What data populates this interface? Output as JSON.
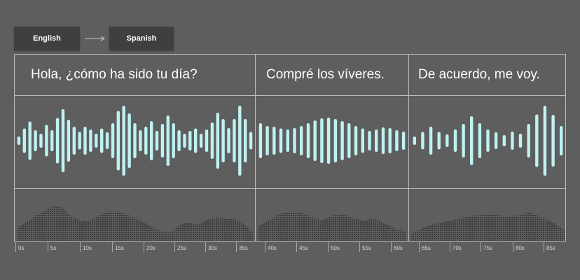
{
  "languages": {
    "source": "English",
    "target": "Spanish"
  },
  "segments": [
    {
      "text": "Hola, ¿cómo ha sido tu día?",
      "bars": [
        0.12,
        0.35,
        0.55,
        0.3,
        0.2,
        0.45,
        0.3,
        0.65,
        0.9,
        0.6,
        0.4,
        0.25,
        0.4,
        0.32,
        0.2,
        0.35,
        0.24,
        0.5,
        0.85,
        1,
        0.78,
        0.5,
        0.3,
        0.4,
        0.56,
        0.28,
        0.48,
        0.72,
        0.5,
        0.3,
        0.2,
        0.28,
        0.35,
        0.2,
        0.32,
        0.52,
        0.8,
        0.62,
        0.36,
        0.62,
        1,
        0.62,
        0.25
      ],
      "density": [
        0.3,
        0.45,
        0.62,
        0.72,
        0.85,
        0.82,
        0.6,
        0.5,
        0.5,
        0.62,
        0.72,
        0.72,
        0.66,
        0.56,
        0.45,
        0.32,
        0.22,
        0.2,
        0.4,
        0.45,
        0.4,
        0.52,
        0.58,
        0.56,
        0.56,
        0.4,
        0.2
      ]
    },
    {
      "text": "Compré los víveres.",
      "bars": [
        0.5,
        0.42,
        0.4,
        0.35,
        0.32,
        0.36,
        0.42,
        0.5,
        0.58,
        0.64,
        0.66,
        0.62,
        0.56,
        0.5,
        0.42,
        0.35,
        0.28,
        0.32,
        0.38,
        0.36,
        0.3,
        0.26
      ],
      "density": [
        0.35,
        0.5,
        0.66,
        0.72,
        0.7,
        0.6,
        0.5,
        0.62,
        0.66,
        0.56,
        0.5,
        0.55,
        0.42,
        0.3,
        0.22
      ]
    },
    {
      "text": "De acuerdo, me voy.",
      "bars": [
        0.12,
        0.25,
        0.4,
        0.25,
        0.18,
        0.32,
        0.48,
        0.7,
        0.5,
        0.32,
        0.24,
        0.16,
        0.26,
        0.2,
        0.48,
        0.75,
        1,
        0.74,
        0.42
      ],
      "density": [
        0.18,
        0.32,
        0.42,
        0.48,
        0.55,
        0.6,
        0.65,
        0.66,
        0.6,
        0.62,
        0.7,
        0.6,
        0.45,
        0.25
      ]
    }
  ],
  "timeline": {
    "labels": [
      "0s",
      "5s",
      "10s",
      "15s",
      "20s",
      "25s",
      "30s",
      "35s",
      "40s",
      "45s",
      "50s",
      "55s",
      "60s",
      "65s",
      "70s",
      "75s",
      "80s",
      "85s"
    ]
  },
  "colors": {
    "background": "#5e5e5e",
    "button": "#3f3f3f",
    "waveform": "#bff2f2",
    "density": "#3c3c3c",
    "grid": "#bdbdbd"
  }
}
